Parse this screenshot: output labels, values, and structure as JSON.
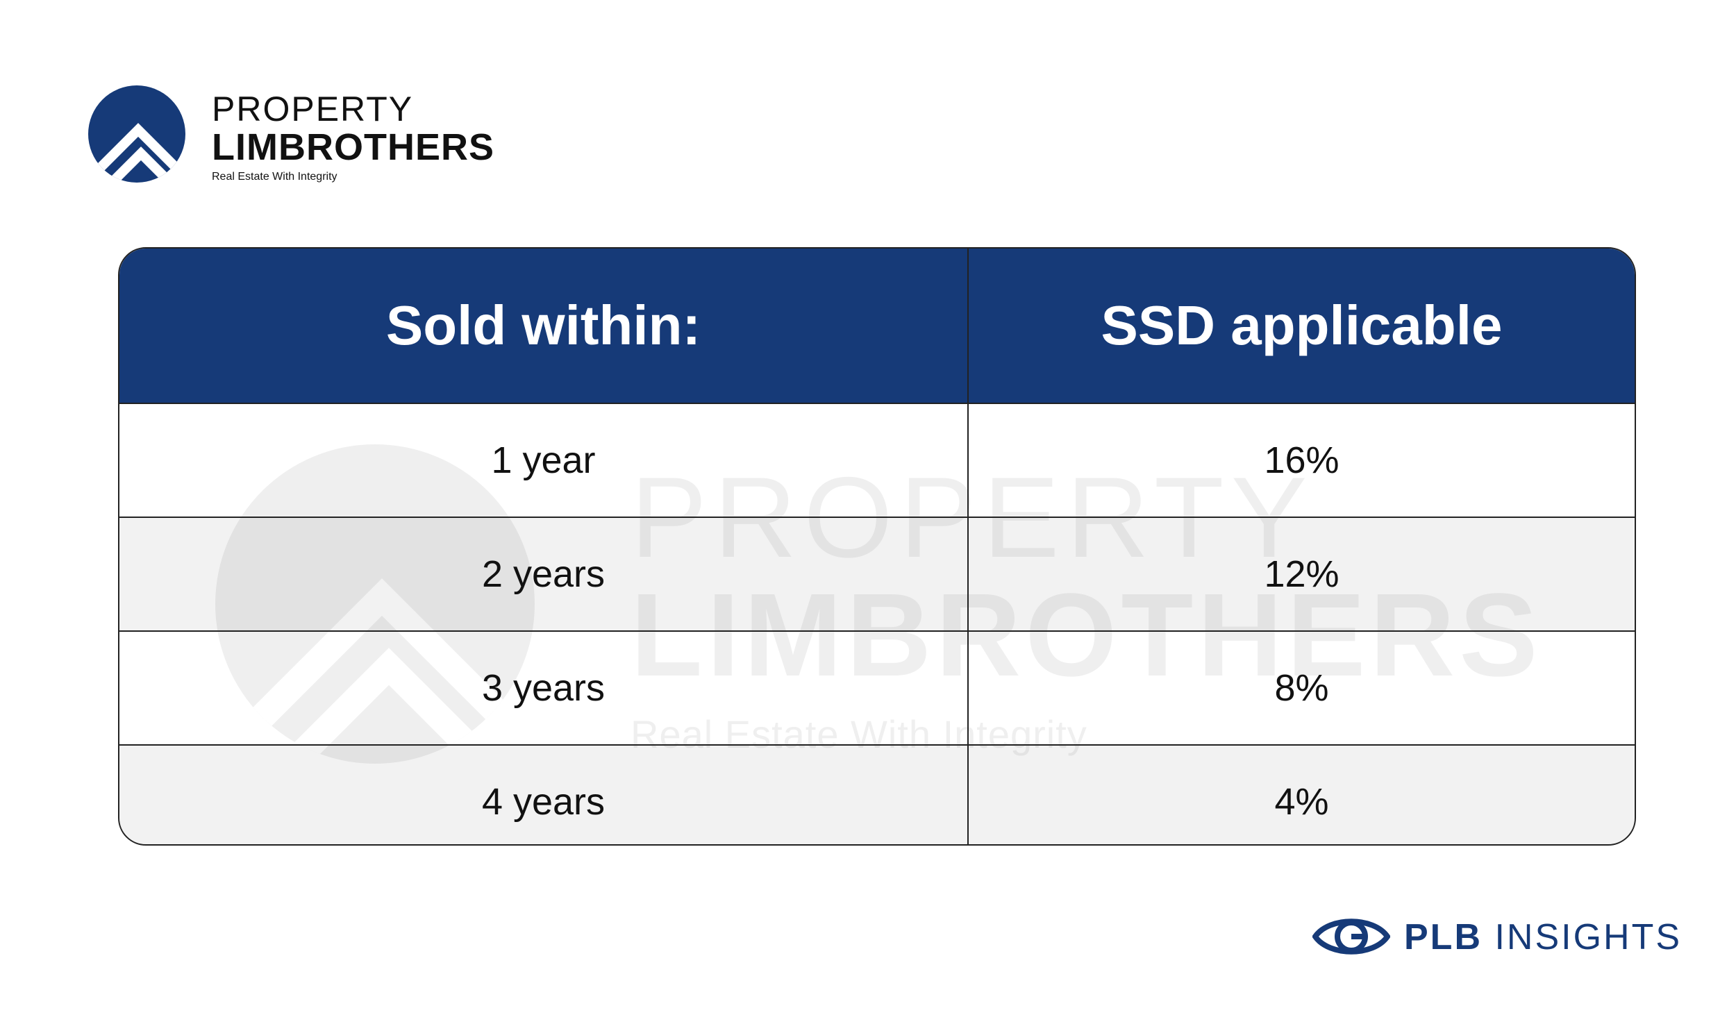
{
  "brand": {
    "line1": "PROPERTY",
    "line2": "LIMBROTHERS",
    "tagline": "Real Estate With Integrity"
  },
  "watermark": {
    "line1": "PROPERTY",
    "line2": "LIMBROTHERS",
    "tagline": "Real Estate With Integrity"
  },
  "table": {
    "headers": [
      "Sold within:",
      "SSD applicable"
    ],
    "rows": [
      [
        "1 year",
        "16%"
      ],
      [
        "2 years",
        "12%"
      ],
      [
        "3 years",
        "8%"
      ],
      [
        "4 years",
        "4%"
      ]
    ]
  },
  "footer": {
    "brand_bold": "PLB",
    "brand_rest": "INSIGHTS"
  },
  "colors": {
    "brand_navy": "#163a78",
    "watermark_grey": "#e7e7e7",
    "stripe_grey": "#f1f1f1"
  },
  "icons": [
    "property-limbrothers-logo-icon",
    "eye-icon"
  ]
}
